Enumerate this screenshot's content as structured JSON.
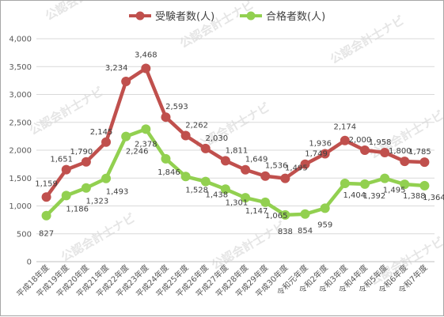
{
  "chart_data": {
    "type": "line",
    "categories": [
      "平成18年度",
      "平成19年度",
      "平成20年度",
      "平成21年度",
      "平成22年度",
      "平成23年度",
      "平成24年度",
      "平成25年度",
      "平成26年度",
      "平成27年度",
      "平成28年度",
      "平成29年度",
      "平成30年度",
      "令和元年度",
      "令和2年度",
      "令和3年度",
      "令和4年度",
      "令和5年度",
      "令和6年度",
      "令和7年度"
    ],
    "series": [
      {
        "name": "受験者数(人)",
        "color": "#c0504d",
        "values": [
          1159,
          1651,
          1790,
          2145,
          3234,
          3468,
          2593,
          2262,
          2030,
          1811,
          1649,
          1536,
          1495,
          1749,
          1936,
          2174,
          2000,
          1958,
          1800,
          1785
        ]
      },
      {
        "name": "合格者数(人)",
        "color": "#92d050",
        "values": [
          827,
          1186,
          1323,
          1493,
          2246,
          2378,
          1846,
          1528,
          1438,
          1301,
          1147,
          1065,
          838,
          854,
          959,
          1404,
          1392,
          1495,
          1388,
          1364
        ]
      }
    ],
    "ylim": [
      0,
      4000
    ],
    "yticks": [
      0,
      500,
      1000,
      1500,
      2000,
      2500,
      3000,
      3500,
      4000
    ],
    "legend": "top-center",
    "grid": true
  },
  "watermark": "公認会計士ナビ"
}
